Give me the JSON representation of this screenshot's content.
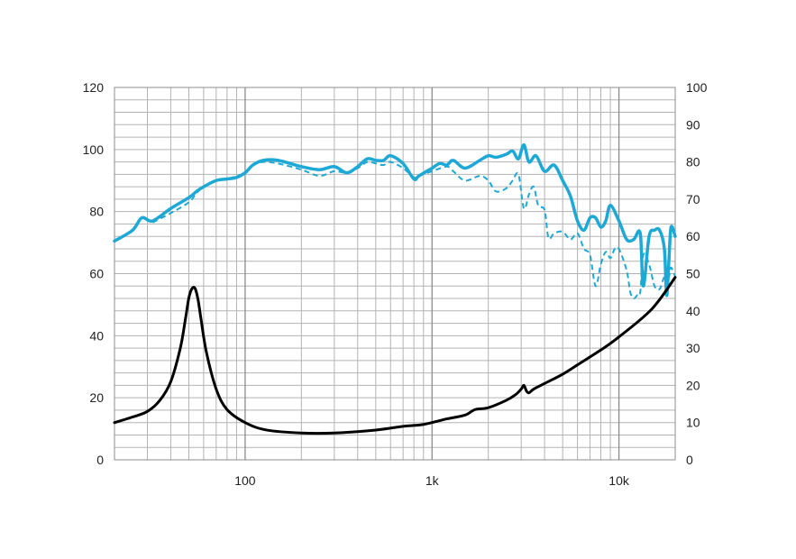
{
  "chart_data": {
    "type": "line",
    "title": "",
    "xlabel": "",
    "ylabel": "",
    "y2label": "",
    "x_scale": "log",
    "xlim": [
      20,
      20000
    ],
    "ylim": [
      0,
      120
    ],
    "y2lim": [
      0,
      100
    ],
    "grid": true,
    "legend": "none",
    "x_tick_labels": [
      {
        "value": 100,
        "label": "100"
      },
      {
        "value": 1000,
        "label": "1k"
      },
      {
        "value": 10000,
        "label": "10k"
      }
    ],
    "y_tick_labels": [
      "0",
      "20",
      "40",
      "60",
      "80",
      "100",
      "120"
    ],
    "y2_tick_labels": [
      "0",
      "10",
      "20",
      "30",
      "40",
      "50",
      "60",
      "70",
      "80",
      "90",
      "100"
    ],
    "series": [
      {
        "axis": "left",
        "color": "#1ea8d6",
        "style": "solid",
        "width": 3.5,
        "points": [
          [
            20,
            70.5
          ],
          [
            25,
            74
          ],
          [
            28,
            78
          ],
          [
            32,
            77
          ],
          [
            40,
            81
          ],
          [
            50,
            84.5
          ],
          [
            55,
            86.5
          ],
          [
            60,
            88
          ],
          [
            70,
            90
          ],
          [
            80,
            90.5
          ],
          [
            90,
            91
          ],
          [
            100,
            92.5
          ],
          [
            110,
            95
          ],
          [
            125,
            96.5
          ],
          [
            150,
            96.5
          ],
          [
            200,
            94.5
          ],
          [
            250,
            93.5
          ],
          [
            300,
            94.5
          ],
          [
            350,
            92.5
          ],
          [
            400,
            94.5
          ],
          [
            450,
            97
          ],
          [
            500,
            96.5
          ],
          [
            550,
            96.5
          ],
          [
            600,
            98
          ],
          [
            700,
            95.5
          ],
          [
            800,
            90.5
          ],
          [
            850,
            91.5
          ],
          [
            1000,
            94
          ],
          [
            1100,
            95.5
          ],
          [
            1200,
            95
          ],
          [
            1300,
            96.5
          ],
          [
            1500,
            94
          ],
          [
            1800,
            96.5
          ],
          [
            2000,
            98
          ],
          [
            2200,
            97.5
          ],
          [
            2500,
            98.5
          ],
          [
            2700,
            99.5
          ],
          [
            2900,
            97
          ],
          [
            3100,
            101.5
          ],
          [
            3300,
            96
          ],
          [
            3600,
            98
          ],
          [
            4000,
            93
          ],
          [
            4500,
            95
          ],
          [
            5000,
            90
          ],
          [
            5500,
            85
          ],
          [
            6000,
            77
          ],
          [
            6500,
            74
          ],
          [
            7000,
            78
          ],
          [
            7500,
            78
          ],
          [
            8000,
            75
          ],
          [
            8500,
            77
          ],
          [
            9000,
            82
          ],
          [
            10000,
            77
          ],
          [
            11000,
            71
          ],
          [
            12000,
            71
          ],
          [
            13000,
            73
          ],
          [
            13500,
            56
          ],
          [
            14500,
            72
          ],
          [
            15500,
            74
          ],
          [
            16500,
            74
          ],
          [
            17500,
            68
          ],
          [
            18000,
            53
          ],
          [
            18500,
            64
          ],
          [
            19000,
            75
          ],
          [
            20000,
            72
          ]
        ]
      },
      {
        "axis": "left",
        "color": "#1ea8d6",
        "style": "dashed",
        "width": 2,
        "points": [
          [
            32,
            76.5
          ],
          [
            40,
            79.5
          ],
          [
            50,
            83
          ],
          [
            55,
            86
          ],
          [
            60,
            88
          ],
          [
            70,
            90
          ],
          [
            80,
            90.5
          ],
          [
            100,
            92.5
          ],
          [
            110,
            95
          ],
          [
            125,
            96
          ],
          [
            150,
            95.5
          ],
          [
            200,
            93.5
          ],
          [
            250,
            91.5
          ],
          [
            300,
            93
          ],
          [
            350,
            92.5
          ],
          [
            400,
            94
          ],
          [
            450,
            96
          ],
          [
            500,
            95.5
          ],
          [
            550,
            95
          ],
          [
            600,
            96
          ],
          [
            700,
            94
          ],
          [
            800,
            91
          ],
          [
            850,
            91.5
          ],
          [
            1000,
            93
          ],
          [
            1200,
            94.5
          ],
          [
            1300,
            93
          ],
          [
            1500,
            90
          ],
          [
            1800,
            91.5
          ],
          [
            2000,
            90
          ],
          [
            2200,
            86.5
          ],
          [
            2500,
            87.5
          ],
          [
            2700,
            90
          ],
          [
            2900,
            92
          ],
          [
            3100,
            81
          ],
          [
            3300,
            85.5
          ],
          [
            3500,
            88
          ],
          [
            3700,
            82
          ],
          [
            4000,
            80.5
          ],
          [
            4200,
            71.5
          ],
          [
            4500,
            73
          ],
          [
            5000,
            73.5
          ],
          [
            5500,
            71
          ],
          [
            6000,
            73
          ],
          [
            6500,
            68
          ],
          [
            7000,
            66
          ],
          [
            7500,
            56
          ],
          [
            8000,
            63
          ],
          [
            8500,
            67
          ],
          [
            9000,
            65
          ],
          [
            9500,
            68
          ],
          [
            10000,
            68
          ],
          [
            11000,
            61
          ],
          [
            11500,
            54
          ],
          [
            12000,
            52
          ],
          [
            12500,
            53
          ],
          [
            13000,
            54
          ],
          [
            13500,
            66
          ],
          [
            14500,
            63
          ],
          [
            15500,
            56
          ],
          [
            16500,
            55
          ],
          [
            17500,
            59
          ],
          [
            18500,
            59
          ],
          [
            19000,
            62
          ],
          [
            20000,
            59
          ]
        ]
      },
      {
        "axis": "right",
        "color": "#000000",
        "style": "solid",
        "width": 3,
        "points": [
          [
            20,
            10
          ],
          [
            25,
            11.5
          ],
          [
            30,
            13
          ],
          [
            35,
            16
          ],
          [
            40,
            21
          ],
          [
            45,
            30
          ],
          [
            48,
            38
          ],
          [
            50,
            43.5
          ],
          [
            52,
            46
          ],
          [
            54,
            46
          ],
          [
            56,
            43
          ],
          [
            58,
            38
          ],
          [
            62,
            29
          ],
          [
            70,
            19
          ],
          [
            80,
            13.5
          ],
          [
            100,
            10
          ],
          [
            130,
            8
          ],
          [
            200,
            7.2
          ],
          [
            300,
            7.2
          ],
          [
            500,
            8
          ],
          [
            700,
            9
          ],
          [
            900,
            9.5
          ],
          [
            1200,
            11
          ],
          [
            1500,
            12
          ],
          [
            1700,
            13.5
          ],
          [
            2000,
            14
          ],
          [
            2500,
            16
          ],
          [
            2800,
            17.5
          ],
          [
            3000,
            19
          ],
          [
            3100,
            20
          ],
          [
            3200,
            18.5
          ],
          [
            3300,
            18
          ],
          [
            3500,
            19
          ],
          [
            4000,
            20.5
          ],
          [
            5000,
            23
          ],
          [
            6000,
            25.5
          ],
          [
            8000,
            29.5
          ],
          [
            10000,
            33
          ],
          [
            15000,
            40.5
          ],
          [
            20000,
            49
          ]
        ]
      }
    ]
  }
}
